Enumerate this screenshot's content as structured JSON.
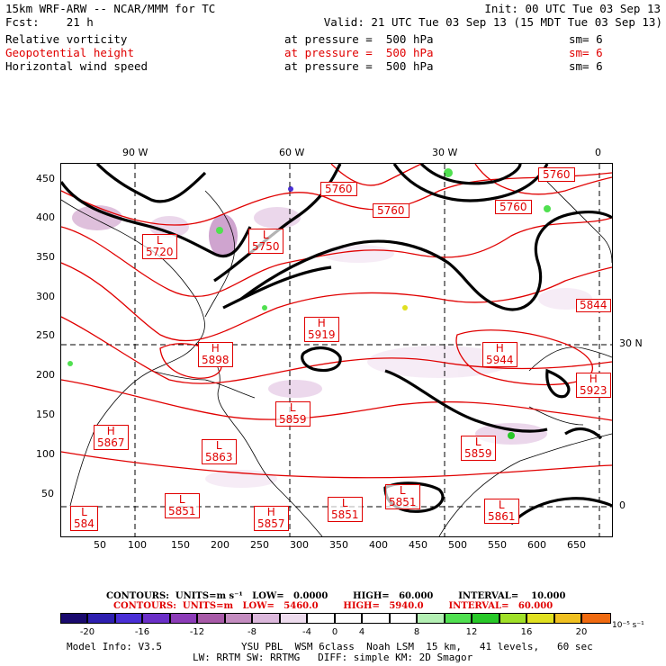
{
  "header": {
    "line1_left": "15km WRF-ARW -- NCAR/MMM for TC",
    "line1_right": "Init: 00 UTC Tue 03 Sep 13",
    "line2_left": "Fcst:    21 h",
    "line2_right": "Valid: 21 UTC Tue 03 Sep 13 (15 MDT Tue 03 Sep 13)",
    "fields": [
      {
        "name": "Relative vorticity",
        "level": "at pressure =  500 hPa",
        "sm": "sm= 6",
        "color": "#000000"
      },
      {
        "name": "Geopotential height",
        "level": "at pressure =  500 hPa",
        "sm": "sm= 6",
        "color": "#e00000"
      },
      {
        "name": "Horizontal wind speed",
        "level": "at pressure =  500 hPa",
        "sm": "sm= 6",
        "color": "#000000"
      }
    ]
  },
  "map": {
    "top_lon_labels": [
      "90 W",
      "60 W",
      "30 W",
      "0"
    ],
    "right_lat_labels": [
      "30 N",
      "0"
    ],
    "y_ticks": [
      "450",
      "400",
      "350",
      "300",
      "250",
      "200",
      "150",
      "100",
      "50"
    ],
    "x_ticks": [
      "50",
      "100",
      "150",
      "200",
      "250",
      "300",
      "350",
      "400",
      "450",
      "500",
      "550",
      "600",
      "650"
    ],
    "height_labels": [
      {
        "type": "",
        "value": "5760"
      },
      {
        "type": "",
        "value": "5760"
      },
      {
        "type": "",
        "value": "5760"
      },
      {
        "type": "",
        "value": "5760"
      },
      {
        "type": "L",
        "value": "5720"
      },
      {
        "type": "L",
        "value": "5750"
      },
      {
        "type": "H",
        "value": "5919"
      },
      {
        "type": "H",
        "value": "5898"
      },
      {
        "type": "H",
        "value": "5944"
      },
      {
        "type": "H",
        "value": "5923"
      },
      {
        "type": "L",
        "value": "5859"
      },
      {
        "type": "H",
        "value": "5867"
      },
      {
        "type": "L",
        "value": "5863"
      },
      {
        "type": "L",
        "value": "5859"
      },
      {
        "type": "L",
        "value": "584"
      },
      {
        "type": "L",
        "value": "5851"
      },
      {
        "type": "H",
        "value": "5857"
      },
      {
        "type": "L",
        "value": "5851"
      },
      {
        "type": "L",
        "value": "5851"
      },
      {
        "type": "L",
        "value": "5861"
      },
      {
        "type": "",
        "value": "5844"
      }
    ]
  },
  "contours": {
    "black": "CONTOURS:  UNITS=m s⁻¹   LOW=   0.0000        HIGH=   60.000        INTERVAL=    10.000",
    "red": "CONTOURS:  UNITS=m   LOW=   5460.0        HIGH=   5940.0        INTERVAL=   60.000"
  },
  "colorbar": {
    "colors": [
      "#1a0a6e",
      "#2e1fb0",
      "#4a2fd6",
      "#6b30c8",
      "#8c3cb8",
      "#a85aa8",
      "#c48cc0",
      "#dcb8dc",
      "#eedcee",
      "#ffffff",
      "#ffffff",
      "#b4f0b4",
      "#50e050",
      "#28c828",
      "#a0e028",
      "#e0e020",
      "#f0c020",
      "#f09818",
      "#f06a10",
      "#ffffff"
    ],
    "labels": [
      "-20",
      "-16",
      "-12",
      "-8",
      "-4",
      "0",
      "4",
      "8",
      "12",
      "16",
      "20"
    ],
    "unit": "10⁻⁵ s⁻¹"
  },
  "footer": {
    "model_info": "Model Info: V3.5",
    "line1": "YSU PBL  WSM 6class  Noah LSM  15 km,   41 levels,   60 sec",
    "line2": "LW: RRTM SW: RRTMG   DIFF: simple KM: 2D Smagor"
  }
}
